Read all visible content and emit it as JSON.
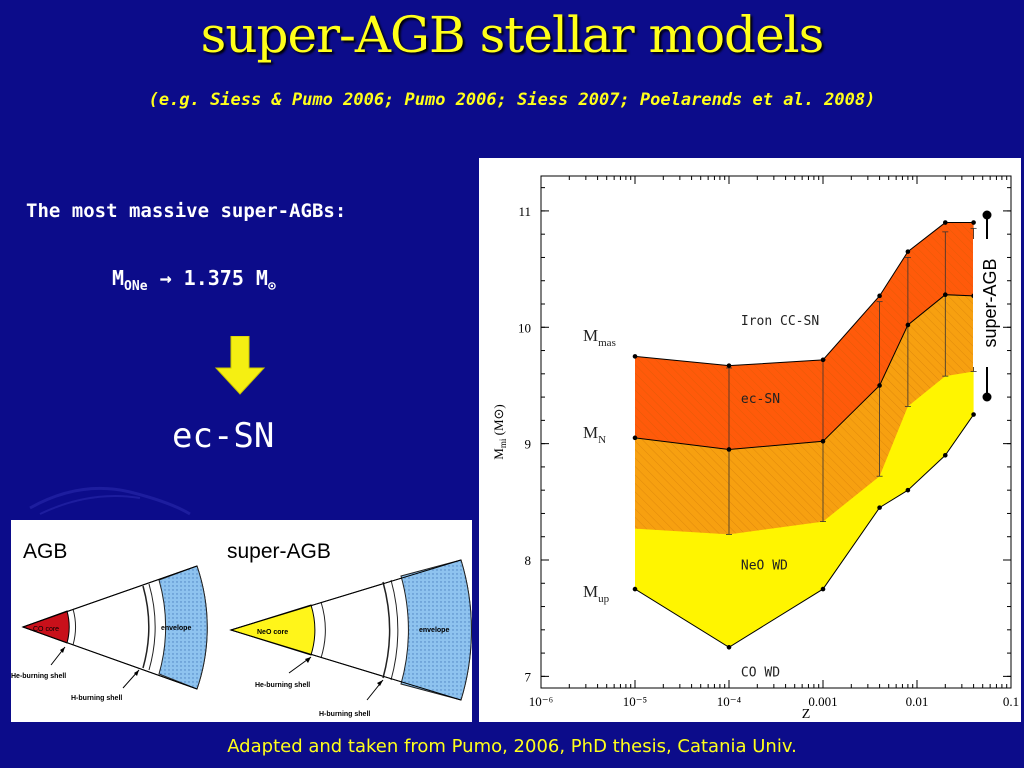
{
  "slide": {
    "title": "super-AGB stellar models",
    "subtitle": "(e.g. Siess & Pumo 2006; Pumo 2006; Siess 2007; Poelarends et al. 2008)",
    "intro": "The most massive super-AGBs:",
    "formula": {
      "lhs_main": "M",
      "lhs_sub": "ONe",
      "arrow": "→",
      "value": "1.375 M",
      "sun_sub": "⊙"
    },
    "outcome": "ec-SN",
    "credit": "Adapted and taken from Pumo, 2006, PhD thesis, Catania Univ.",
    "side_label": "super-AGB",
    "colors": {
      "background": "#0c0c8a",
      "title": "#ffff1a",
      "arrow": "#f5ef12",
      "iron_region": "#ff5a0a",
      "ecsn_region": "#f7a010",
      "neo_region": "#fff500"
    }
  },
  "schematic": {
    "agb_label": "AGB",
    "sagb_label": "super-AGB",
    "agb": {
      "core": "CO  core",
      "envelope": "envelope",
      "he_shell": "He-burning shell",
      "h_shell": "H-burning shell"
    },
    "sagb": {
      "core": "NeO  core",
      "envelope": "envelope",
      "he_shell": "He-burning shell",
      "h_shell": "H-burning shell"
    }
  },
  "chart_data": {
    "type": "area",
    "xlabel": "Z",
    "ylabel": "M",
    "ylabel_sub": "mi",
    "ylabel_unit": "(M⊙)",
    "xscale": "log",
    "xlim": [
      1e-06,
      0.1
    ],
    "ylim": [
      6.9,
      11.3
    ],
    "x_ticks": [
      {
        "v": 1e-06,
        "label": "10⁻⁶"
      },
      {
        "v": 1e-05,
        "label": "10⁻⁵"
      },
      {
        "v": 0.0001,
        "label": "10⁻⁴"
      },
      {
        "v": 0.001,
        "label": "0.001"
      },
      {
        "v": 0.01,
        "label": "0.01"
      },
      {
        "v": 0.1,
        "label": "0.1"
      }
    ],
    "y_ticks": [
      7,
      8,
      9,
      10,
      11
    ],
    "curves": {
      "m_up": {
        "label_main": "M",
        "label_sub": "up",
        "x": [
          1e-05,
          0.0001,
          0.001,
          0.004,
          0.008,
          0.02,
          0.04
        ],
        "y": [
          7.75,
          7.25,
          7.75,
          8.45,
          8.6,
          8.9,
          9.25
        ]
      },
      "m_n": {
        "label_main": "M",
        "label_sub": "N",
        "x": [
          1e-05,
          0.0001,
          0.001,
          0.004,
          0.008,
          0.02,
          0.04
        ],
        "y": [
          9.05,
          8.95,
          9.02,
          9.5,
          10.02,
          10.28,
          10.27
        ]
      },
      "m_mas": {
        "label_main": "M",
        "label_sub": "mas",
        "x": [
          1e-05,
          0.0001,
          0.001,
          0.004,
          0.008,
          0.02,
          0.04
        ],
        "y": [
          9.75,
          9.67,
          9.72,
          10.27,
          10.65,
          10.9,
          10.9
        ]
      },
      "ecsn_upper": {
        "x": [
          1e-05,
          0.0001,
          0.001,
          0.004,
          0.008,
          0.02,
          0.04
        ],
        "y": [
          8.27,
          8.22,
          8.33,
          8.72,
          9.32,
          9.58,
          9.62
        ]
      }
    },
    "error_bars": [
      {
        "x": 0.0001,
        "low": 8.22,
        "high": 9.65
      },
      {
        "x": 0.001,
        "low": 8.33,
        "high": 9.72
      },
      {
        "x": 0.004,
        "low": 8.72,
        "high": 10.22
      },
      {
        "x": 0.008,
        "low": 9.32,
        "high": 10.6
      },
      {
        "x": 0.02,
        "low": 9.58,
        "high": 10.82
      },
      {
        "x": 0.04,
        "low": 9.62,
        "high": 10.85
      }
    ],
    "regions": [
      {
        "label": "Iron  CC-SN",
        "x": 0.00011,
        "y": 10.02
      },
      {
        "label": "ec-SN",
        "x": 0.00011,
        "y": 9.35
      },
      {
        "label": "NeO  WD",
        "x": 0.00011,
        "y": 7.92
      },
      {
        "label": "CO  WD",
        "x": 0.00011,
        "y": 7.0
      }
    ]
  }
}
